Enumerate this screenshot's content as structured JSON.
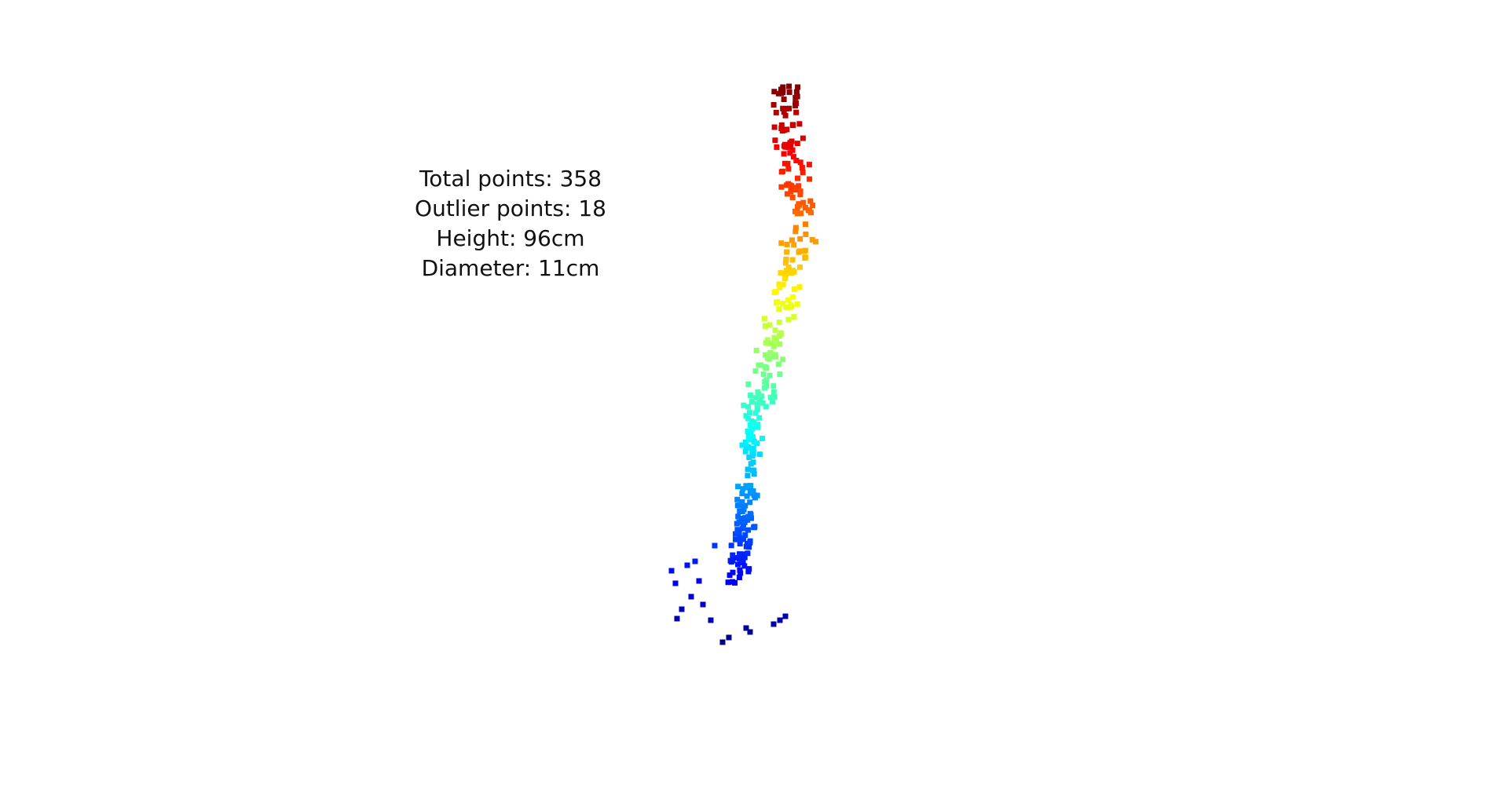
{
  "stats": {
    "total_points": "Total points: 358",
    "outlier_points": "Outlier points: 18",
    "height": "Height: 96cm",
    "diameter": "Diameter: 11cm"
  },
  "colormap": [
    "#000080",
    "#0000ff",
    "#0080ff",
    "#00ffff",
    "#80ff80",
    "#ffff00",
    "#ff8000",
    "#ff0000",
    "#800000"
  ]
}
